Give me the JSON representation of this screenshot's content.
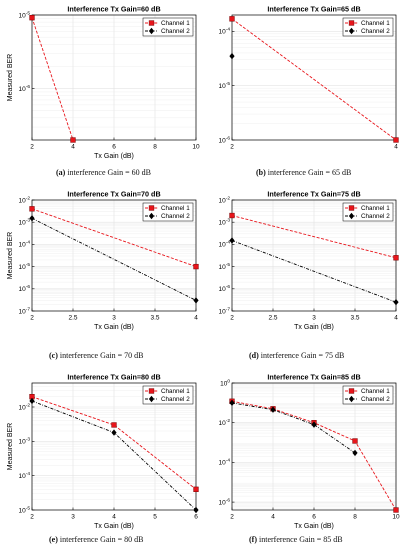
{
  "colors": {
    "channel1": "#e8151b",
    "channel2": "#000000",
    "grid": "#e3e3e3",
    "axis": "#000000"
  },
  "captions": [
    {
      "tag": "(a)",
      "text": "interference Gain = 60 dB"
    },
    {
      "tag": "(b)",
      "text": "interference Gain = 65 dB"
    },
    {
      "tag": "(c)",
      "text": "interference Gain = 70 dB"
    },
    {
      "tag": "(d)",
      "text": "interference Gain = 75 dB"
    },
    {
      "tag": "(e)",
      "text": "interference Gain = 80 dB"
    },
    {
      "tag": "(f)",
      "text": "interference Gain = 85 dB"
    }
  ],
  "chart_data": [
    {
      "type": "line",
      "title": "Interference Tx Gain=60 dB",
      "xlabel": "Tx Gain (dB)",
      "ylabel": "Measured BER",
      "xlim": [
        2,
        10
      ],
      "ylim": [
        2e-07,
        1e-05
      ],
      "yscale": "log",
      "grid": true,
      "legend": "top-right",
      "xticks": [
        2,
        4,
        6,
        8,
        10
      ],
      "xtick_labels": [
        "2",
        "4",
        "6",
        "8",
        "10"
      ],
      "yticks": [
        1e-06,
        1e-05
      ],
      "ytick_labels": [
        "10^-6",
        "10^-5"
      ],
      "series": [
        {
          "name": "Channel 1",
          "x": [
            2,
            4
          ],
          "values": [
            9.2e-06,
            2e-07
          ]
        },
        {
          "name": "Channel 2",
          "x": [],
          "values": []
        }
      ]
    },
    {
      "type": "line",
      "title": "Interference Tx Gain=65 dB",
      "xlabel": "",
      "ylabel": "",
      "xlim": [
        2,
        4
      ],
      "ylim": [
        1e-06,
        0.0002
      ],
      "yscale": "log",
      "grid": true,
      "legend": "top-right",
      "xticks": [
        2,
        4
      ],
      "xtick_labels": [
        "2",
        "4"
      ],
      "yticks": [
        1e-06,
        1e-05,
        0.0001
      ],
      "ytick_labels": [
        "10^-6",
        "10^-5",
        "10^-4"
      ],
      "series": [
        {
          "name": "Channel 1",
          "x": [
            2,
            4
          ],
          "values": [
            0.00017,
            1e-06
          ]
        },
        {
          "name": "Channel 2",
          "x": [
            2
          ],
          "values": [
            3.5e-05
          ]
        }
      ]
    },
    {
      "type": "line",
      "title": "Interference Tx Gain=70 dB",
      "xlabel": "Tx Gain (dB)",
      "ylabel": "Measured BER",
      "xlim": [
        2,
        4
      ],
      "ylim": [
        1e-07,
        0.01
      ],
      "yscale": "log",
      "grid": true,
      "legend": "top-right",
      "xticks": [
        2,
        2.5,
        3,
        3.5,
        4
      ],
      "xtick_labels": [
        "2",
        "2.5",
        "3",
        "3.5",
        "4"
      ],
      "yticks": [
        1e-07,
        1e-06,
        1e-05,
        0.0001,
        0.001,
        0.01
      ],
      "ytick_labels": [
        "10^-7",
        "10^-6",
        "10^-5",
        "10^-4",
        "10^-3",
        "10^-2"
      ],
      "series": [
        {
          "name": "Channel 1",
          "x": [
            2,
            4
          ],
          "values": [
            0.004,
            1e-05
          ]
        },
        {
          "name": "Channel 2",
          "x": [
            2,
            4
          ],
          "values": [
            0.0015,
            3e-07
          ]
        }
      ]
    },
    {
      "type": "line",
      "title": "Interference Tx Gain=75 dB",
      "xlabel": "Tx Gain (dB)",
      "ylabel": "",
      "xlim": [
        2,
        4
      ],
      "ylim": [
        1e-07,
        0.01
      ],
      "yscale": "log",
      "grid": true,
      "legend": "top-right",
      "xticks": [
        2,
        2.5,
        3,
        3.5,
        4
      ],
      "xtick_labels": [
        "2",
        "2.5",
        "3",
        "3.5",
        "4"
      ],
      "yticks": [
        1e-07,
        1e-06,
        1e-05,
        0.0001,
        0.001,
        0.01
      ],
      "ytick_labels": [
        "10^-7",
        "10^-6",
        "10^-5",
        "10^-4",
        "10^-3",
        "10^-2"
      ],
      "series": [
        {
          "name": "Channel 1",
          "x": [
            2,
            4
          ],
          "values": [
            0.002,
            2.5e-05
          ]
        },
        {
          "name": "Channel 2",
          "x": [
            2,
            4
          ],
          "values": [
            0.00015,
            2.5e-07
          ]
        }
      ]
    },
    {
      "type": "line",
      "title": "Interference Tx Gain=80 dB",
      "xlabel": "Tx Gain (dB)",
      "ylabel": "Measured BER",
      "xlim": [
        2,
        6
      ],
      "ylim": [
        1e-05,
        0.05
      ],
      "yscale": "log",
      "grid": true,
      "legend": "top-right",
      "xticks": [
        2,
        3,
        4,
        5,
        6
      ],
      "xtick_labels": [
        "2",
        "3",
        "4",
        "5",
        "6"
      ],
      "yticks": [
        1e-05,
        0.0001,
        0.001,
        0.01
      ],
      "ytick_labels": [
        "10^-5",
        "10^-4",
        "10^-3",
        "10^-2"
      ],
      "series": [
        {
          "name": "Channel 1",
          "x": [
            2,
            4,
            6
          ],
          "values": [
            0.02,
            0.003,
            4e-05
          ]
        },
        {
          "name": "Channel 2",
          "x": [
            2,
            4,
            6
          ],
          "values": [
            0.015,
            0.0018,
            1e-05
          ]
        }
      ]
    },
    {
      "type": "line",
      "title": "Interference Tx Gain=85 dB",
      "xlabel": "Tx Gain (dB)",
      "ylabel": "",
      "xlim": [
        2,
        10
      ],
      "ylim": [
        4e-07,
        1
      ],
      "yscale": "log",
      "grid": true,
      "legend": "top-right",
      "xticks": [
        2,
        4,
        6,
        8,
        10
      ],
      "xtick_labels": [
        "2",
        "4",
        "6",
        "8",
        "10"
      ],
      "yticks": [
        1e-06,
        0.0001,
        0.01,
        1
      ],
      "ytick_labels": [
        "10^-6",
        "10^-4",
        "10^-2",
        "10^0"
      ],
      "series": [
        {
          "name": "Channel 1",
          "x": [
            2,
            4,
            6,
            8,
            10
          ],
          "values": [
            0.12,
            0.05,
            0.01,
            0.0012,
            4e-07
          ]
        },
        {
          "name": "Channel 2",
          "x": [
            2,
            4,
            6,
            8
          ],
          "values": [
            0.1,
            0.045,
            0.008,
            0.0003
          ]
        }
      ]
    }
  ]
}
